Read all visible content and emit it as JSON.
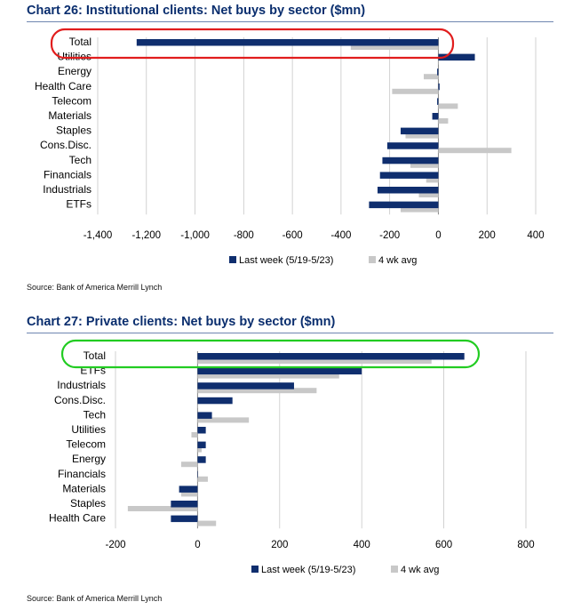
{
  "chart_data": [
    {
      "type": "bar",
      "title": "Chart 26: Institutional clients: Net buys by sector ($mn)",
      "categories": [
        "Total",
        "Utilities",
        "Energy",
        "Health Care",
        "Telecom",
        "Materials",
        "Staples",
        "Cons.Disc.",
        "Tech",
        "Financials",
        "Industrials",
        "ETFs"
      ],
      "series": [
        {
          "name": "Last week (5/19-5/23)",
          "color": "#0f2e6e",
          "values": [
            -1240,
            150,
            -5,
            5,
            -5,
            -25,
            -155,
            -210,
            -230,
            -240,
            -250,
            -285
          ]
        },
        {
          "name": "4 wk avg",
          "color": "#c8c8c8",
          "values": [
            -360,
            0,
            -60,
            -190,
            80,
            40,
            -135,
            300,
            -115,
            -50,
            -80,
            -155
          ]
        }
      ],
      "xticks": [
        -1400,
        -1200,
        -1000,
        -800,
        -600,
        -400,
        -200,
        0,
        200,
        400
      ],
      "xlim": [
        -1400,
        400
      ],
      "legend_position": "bottom",
      "highlight": {
        "category": "Total",
        "color": "#e11d1d"
      },
      "source": "Source: Bank of America Merrill Lynch"
    },
    {
      "type": "bar",
      "title": "Chart 27: Private clients: Net buys by sector ($mn)",
      "categories": [
        "Total",
        "ETFs",
        "Industrials",
        "Cons.Disc.",
        "Tech",
        "Utilities",
        "Telecom",
        "Energy",
        "Financials",
        "Materials",
        "Staples",
        "Health Care"
      ],
      "series": [
        {
          "name": "Last week (5/19-5/23)",
          "color": "#0f2e6e",
          "values": [
            650,
            400,
            235,
            85,
            35,
            20,
            20,
            20,
            0,
            -45,
            -65,
            -65
          ]
        },
        {
          "name": "4 wk avg",
          "color": "#c8c8c8",
          "values": [
            570,
            345,
            290,
            0,
            125,
            -15,
            10,
            -40,
            25,
            -40,
            -170,
            45
          ]
        }
      ],
      "xticks": [
        -200,
        0,
        200,
        400,
        600,
        800
      ],
      "xlim": [
        -200,
        800
      ],
      "legend_position": "bottom",
      "highlight": {
        "category": "Total",
        "color": "#22cc22"
      },
      "source": "Source: Bank of America Merrill Lynch"
    }
  ]
}
